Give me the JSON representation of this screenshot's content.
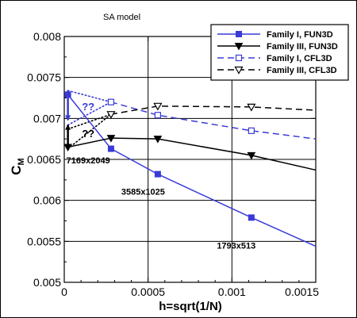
{
  "chart_data": {
    "type": "line",
    "title": "SA model",
    "xlabel": "h=sqrt(1/N)",
    "ylabel": "C",
    "ylabel_sub": "M",
    "xlim": [
      0,
      0.0015
    ],
    "ylim": [
      0.005,
      0.008
    ],
    "grid": true,
    "legend_position": "top-right",
    "x_ticks": [
      0,
      0.0005,
      0.001,
      0.0015
    ],
    "x_tick_labels": [
      "0",
      "0.0005",
      "0.001",
      "0.0015"
    ],
    "y_ticks": [
      0.005,
      0.0055,
      0.006,
      0.0065,
      0.007,
      0.0075,
      0.008
    ],
    "y_tick_labels": [
      "0.005",
      "0.0055",
      "0.006",
      "0.0065",
      "0.007",
      "0.0075",
      "0.008"
    ],
    "series": [
      {
        "name": "Family I, FUN3D",
        "color": "#3a3ad8",
        "line": "solid",
        "marker": "square-filled",
        "x": [
          2.18e-05,
          0.0002789,
          0.0005578,
          0.0011161,
          0.0015
        ],
        "y": [
          0.00729,
          0.00663,
          0.00632,
          0.00579,
          0.00544
        ],
        "marker_count": 4
      },
      {
        "name": "Family III, FUN3D",
        "color": "#000000",
        "line": "solid",
        "marker": "triangle-down-filled",
        "x": [
          2.18e-05,
          0.0002789,
          0.0005578,
          0.0011161,
          0.0015
        ],
        "y": [
          0.00665,
          0.00676,
          0.00675,
          0.00655,
          0.00637
        ],
        "marker_count": 4
      },
      {
        "name": "Family I, CFL3D",
        "color": "#3a3ad8",
        "line": "dashed",
        "marker": "square-open",
        "x": [
          0.0002789,
          0.0005578,
          0.0011161,
          0.0015
        ],
        "y": [
          0.0072,
          0.00704,
          0.00685,
          0.00675
        ],
        "marker_count": 3
      },
      {
        "name": "Family III, CFL3D",
        "color": "#000000",
        "line": "dashed",
        "marker": "triangle-down-open",
        "x": [
          0.0002789,
          0.0005578,
          0.0011161,
          0.0015
        ],
        "y": [
          0.00705,
          0.00715,
          0.00714,
          0.0071
        ],
        "marker_count": 3
      }
    ],
    "extrapolations": [
      {
        "color": "#3a3ad8",
        "x": [
          2.18e-05,
          0.0002789
        ],
        "y": [
          0.00734,
          0.0072
        ]
      },
      {
        "color": "#3a3ad8",
        "x": [
          2.18e-05,
          0.0002789
        ],
        "y": [
          0.00692,
          0.0072
        ]
      },
      {
        "color": "#000000",
        "x": [
          2.18e-05,
          0.0002789
        ],
        "y": [
          0.00687,
          0.00705
        ]
      },
      {
        "color": "#000000",
        "x": [
          2.18e-05,
          0.0002789
        ],
        "y": [
          0.00663,
          0.00705
        ]
      }
    ],
    "uncertainty_arrows": [
      {
        "color": "#3a3ad8",
        "x": 2.18e-05,
        "y_from": 0.00698,
        "y_to": 0.00734
      },
      {
        "color": "#000000",
        "x": 2.18e-05,
        "y_from": 0.00662,
        "y_to": 0.00692
      }
    ],
    "annotations": [
      {
        "text": "??",
        "color": "#3a3ad8",
        "x": 0.000105,
        "y": 0.0071
      },
      {
        "text": "??",
        "color": "#000000",
        "x": 0.000105,
        "y": 0.00677
      },
      {
        "text": "7169x2049",
        "color": "#000000",
        "x": 1.25e-05,
        "y": 0.00645
      },
      {
        "text": "3585x1025",
        "color": "#000000",
        "x": 0.00034,
        "y": 0.00607
      },
      {
        "text": "1793x513",
        "color": "#000000",
        "x": 0.00091,
        "y": 0.00541
      }
    ]
  }
}
